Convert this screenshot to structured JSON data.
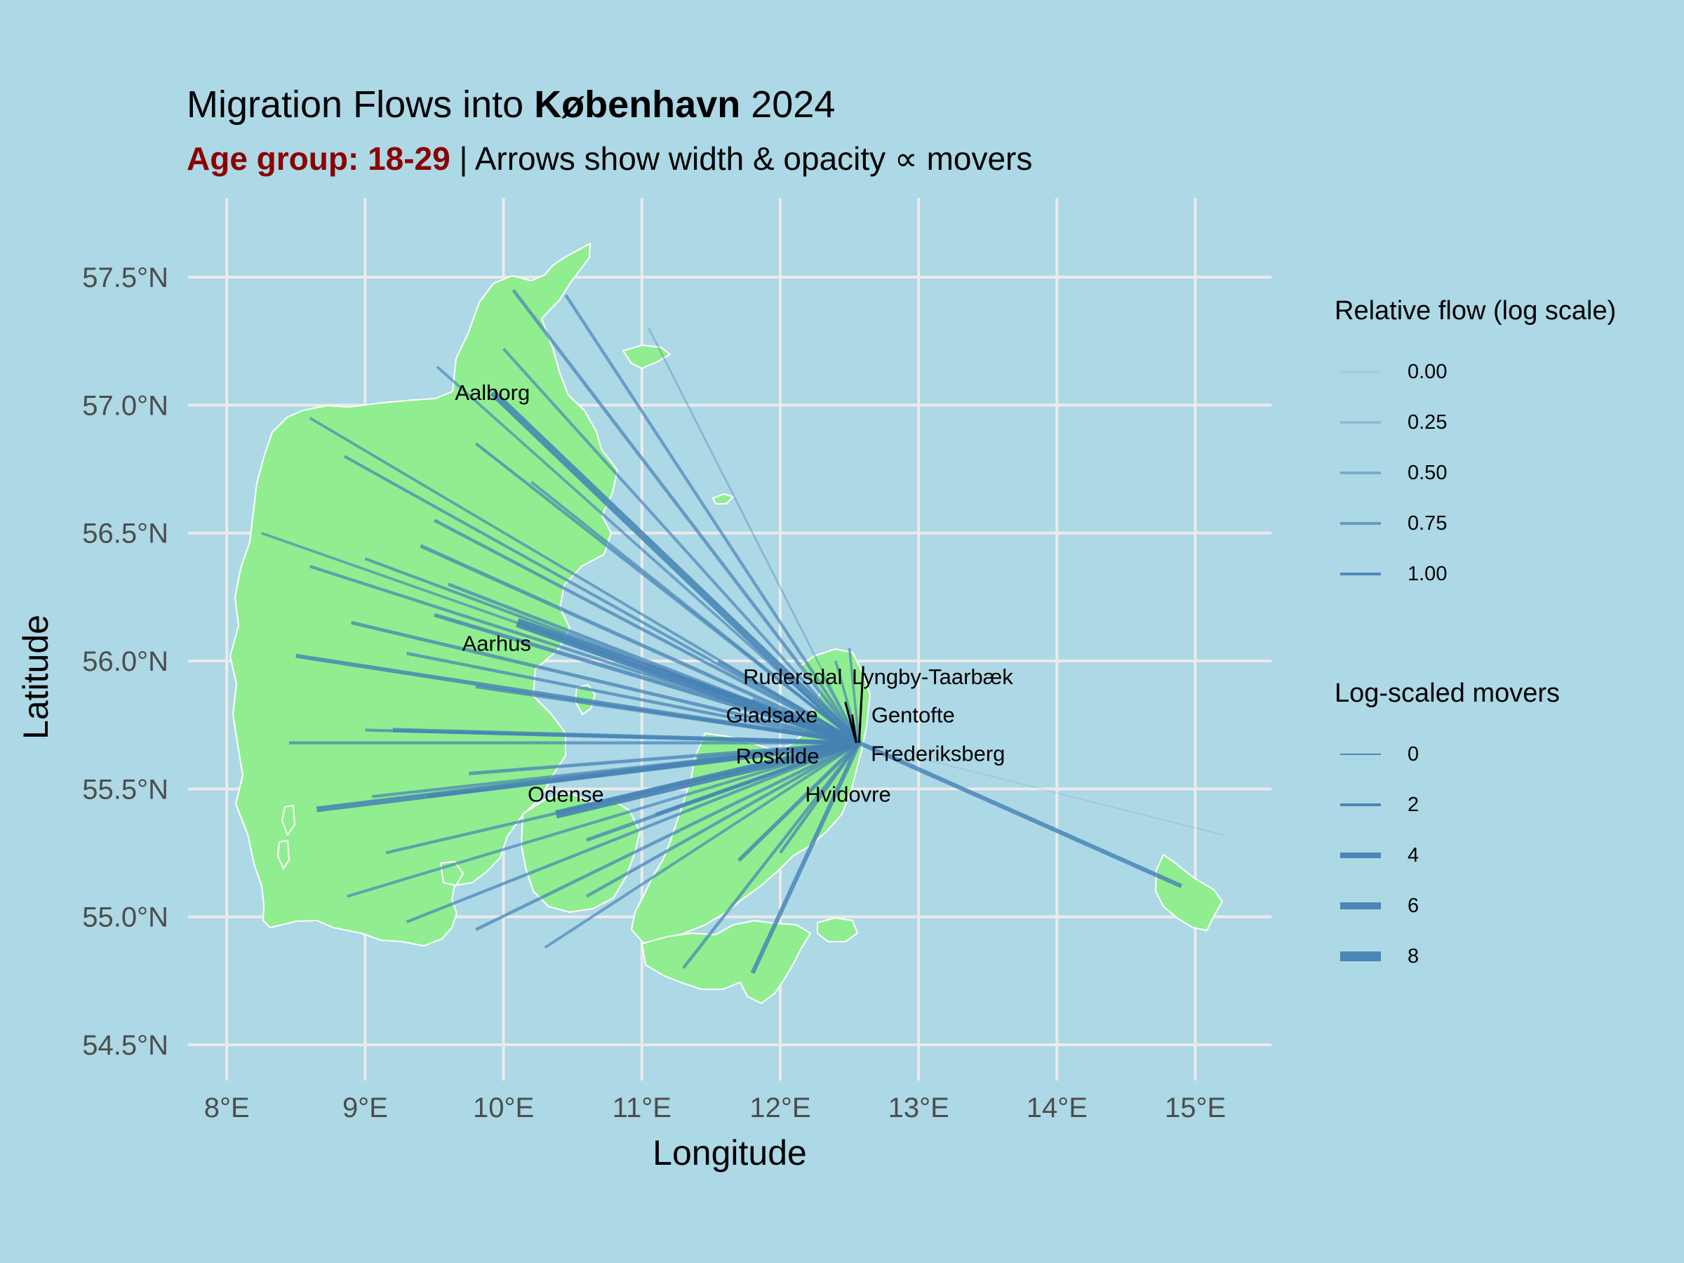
{
  "title": {
    "prefix": "Migration Flows into ",
    "city": "København",
    "year": " 2024"
  },
  "subtitle": {
    "age_label": "Age group: 18-29",
    "rest": " | Arrows show width & opacity ∝ movers"
  },
  "axes": {
    "xlabel": "Longitude",
    "ylabel": "Latitude",
    "x_ticks": [
      "8°E",
      "9°E",
      "10°E",
      "11°E",
      "12°E",
      "13°E",
      "14°E",
      "15°E"
    ],
    "y_ticks": [
      "54.5°N",
      "55.0°N",
      "55.5°N",
      "56.0°N",
      "56.5°N",
      "57.0°N",
      "57.5°N"
    ],
    "x_range": [
      7.72,
      15.55
    ],
    "y_range": [
      54.36,
      57.81
    ]
  },
  "colors": {
    "sea": "#ADD8E6",
    "land": "#90EE90",
    "flow": "#4682B4",
    "grid": "#EBEBEB",
    "highlight": "#8B0000"
  },
  "destination": {
    "name": "København",
    "lon": 12.57,
    "lat": 55.68
  },
  "labels": [
    {
      "text": "Aalborg",
      "lon": 9.92,
      "lat": 57.05,
      "lon_line": null,
      "lat_line": null
    },
    {
      "text": "Aarhus",
      "lon": 9.95,
      "lat": 56.07,
      "lon_line": null,
      "lat_line": null
    },
    {
      "text": "Odense",
      "lon": 10.45,
      "lat": 55.48,
      "lon_line": null,
      "lat_line": null
    },
    {
      "text": "Roskilde",
      "lon": 11.98,
      "lat": 55.63,
      "lon_line": null,
      "lat_line": null
    },
    {
      "text": "Rudersdal",
      "lon": 12.09,
      "lat": 55.94,
      "lon_line": 12.47,
      "lat_line": 55.84
    },
    {
      "text": "Lyngby-Taarbæk",
      "lon": 13.1,
      "lat": 55.94,
      "lon_line": 12.6,
      "lat_line": 55.98
    },
    {
      "text": "Gladsaxe",
      "lon": 11.94,
      "lat": 55.79,
      "lon_line": null,
      "lat_line": null
    },
    {
      "text": "Gentofte",
      "lon": 12.96,
      "lat": 55.79,
      "lon_line": 12.52,
      "lat_line": 55.79
    },
    {
      "text": "Frederiksberg",
      "lon": 13.14,
      "lat": 55.64,
      "lon_line": null,
      "lat_line": null
    },
    {
      "text": "Hvidovre",
      "lon": 12.49,
      "lat": 55.48,
      "lon_line": null,
      "lat_line": null
    }
  ],
  "flows": [
    {
      "lon": 9.92,
      "lat": 57.05,
      "movers": 6.0,
      "relative": 0.95
    },
    {
      "lon": 10.07,
      "lat": 57.45,
      "movers": 2.3,
      "relative": 0.75
    },
    {
      "lon": 10.45,
      "lat": 57.43,
      "movers": 2.0,
      "relative": 0.72
    },
    {
      "lon": 10.0,
      "lat": 57.22,
      "movers": 1.8,
      "relative": 0.7
    },
    {
      "lon": 9.52,
      "lat": 57.15,
      "movers": 1.6,
      "relative": 0.68
    },
    {
      "lon": 11.05,
      "lat": 57.3,
      "movers": 0.8,
      "relative": 0.35
    },
    {
      "lon": 8.6,
      "lat": 56.95,
      "movers": 1.6,
      "relative": 0.72
    },
    {
      "lon": 8.85,
      "lat": 56.8,
      "movers": 1.8,
      "relative": 0.74
    },
    {
      "lon": 9.8,
      "lat": 56.85,
      "movers": 1.9,
      "relative": 0.74
    },
    {
      "lon": 10.2,
      "lat": 56.7,
      "movers": 1.7,
      "relative": 0.72
    },
    {
      "lon": 9.5,
      "lat": 56.55,
      "movers": 2.1,
      "relative": 0.78
    },
    {
      "lon": 8.25,
      "lat": 56.5,
      "movers": 1.5,
      "relative": 0.68
    },
    {
      "lon": 9.0,
      "lat": 56.4,
      "movers": 1.8,
      "relative": 0.74
    },
    {
      "lon": 8.6,
      "lat": 56.37,
      "movers": 2.0,
      "relative": 0.75
    },
    {
      "lon": 9.4,
      "lat": 56.45,
      "movers": 2.6,
      "relative": 0.8
    },
    {
      "lon": 9.6,
      "lat": 56.3,
      "movers": 2.2,
      "relative": 0.78
    },
    {
      "lon": 10.1,
      "lat": 56.15,
      "movers": 8.0,
      "relative": 1.0
    },
    {
      "lon": 9.5,
      "lat": 56.18,
      "movers": 2.8,
      "relative": 0.85
    },
    {
      "lon": 8.9,
      "lat": 56.15,
      "movers": 2.4,
      "relative": 0.8
    },
    {
      "lon": 9.3,
      "lat": 56.03,
      "movers": 2.0,
      "relative": 0.78
    },
    {
      "lon": 8.5,
      "lat": 56.02,
      "movers": 3.0,
      "relative": 0.88
    },
    {
      "lon": 9.8,
      "lat": 55.9,
      "movers": 2.4,
      "relative": 0.82
    },
    {
      "lon": 9.0,
      "lat": 55.73,
      "movers": 1.9,
      "relative": 0.76
    },
    {
      "lon": 8.45,
      "lat": 55.68,
      "movers": 2.0,
      "relative": 0.75
    },
    {
      "lon": 9.2,
      "lat": 55.73,
      "movers": 3.2,
      "relative": 0.9
    },
    {
      "lon": 9.75,
      "lat": 55.56,
      "movers": 2.3,
      "relative": 0.8
    },
    {
      "lon": 9.05,
      "lat": 55.47,
      "movers": 2.0,
      "relative": 0.75
    },
    {
      "lon": 8.65,
      "lat": 55.42,
      "movers": 4.5,
      "relative": 0.95
    },
    {
      "lon": 9.45,
      "lat": 55.47,
      "movers": 2.5,
      "relative": 0.82
    },
    {
      "lon": 10.38,
      "lat": 55.4,
      "movers": 7.0,
      "relative": 1.0
    },
    {
      "lon": 9.15,
      "lat": 55.25,
      "movers": 1.9,
      "relative": 0.75
    },
    {
      "lon": 8.87,
      "lat": 55.08,
      "movers": 1.8,
      "relative": 0.72
    },
    {
      "lon": 9.3,
      "lat": 54.98,
      "movers": 1.9,
      "relative": 0.74
    },
    {
      "lon": 9.8,
      "lat": 54.95,
      "movers": 2.1,
      "relative": 0.76
    },
    {
      "lon": 10.3,
      "lat": 54.88,
      "movers": 1.7,
      "relative": 0.72
    },
    {
      "lon": 10.6,
      "lat": 55.08,
      "movers": 2.0,
      "relative": 0.75
    },
    {
      "lon": 10.6,
      "lat": 55.3,
      "movers": 2.4,
      "relative": 0.8
    },
    {
      "lon": 11.1,
      "lat": 55.4,
      "movers": 2.5,
      "relative": 0.82
    },
    {
      "lon": 11.8,
      "lat": 54.78,
      "movers": 3.2,
      "relative": 0.88
    },
    {
      "lon": 11.3,
      "lat": 54.8,
      "movers": 2.0,
      "relative": 0.76
    },
    {
      "lon": 11.7,
      "lat": 55.22,
      "movers": 2.8,
      "relative": 0.85
    },
    {
      "lon": 12.0,
      "lat": 55.25,
      "movers": 2.0,
      "relative": 0.78
    },
    {
      "lon": 11.2,
      "lat": 55.95,
      "movers": 2.2,
      "relative": 0.8
    },
    {
      "lon": 11.55,
      "lat": 56.0,
      "movers": 1.8,
      "relative": 0.75
    },
    {
      "lon": 11.8,
      "lat": 55.85,
      "movers": 2.0,
      "relative": 0.78
    },
    {
      "lon": 11.4,
      "lat": 55.62,
      "movers": 2.2,
      "relative": 0.8
    },
    {
      "lon": 12.4,
      "lat": 56.0,
      "movers": 1.5,
      "relative": 0.72
    },
    {
      "lon": 12.3,
      "lat": 55.95,
      "movers": 1.6,
      "relative": 0.72
    },
    {
      "lon": 12.5,
      "lat": 56.05,
      "movers": 1.4,
      "relative": 0.7
    },
    {
      "lon": 14.9,
      "lat": 55.12,
      "movers": 3.2,
      "relative": 0.9
    },
    {
      "lon": 15.2,
      "lat": 55.32,
      "movers": 0.1,
      "relative": 0.05
    }
  ],
  "legend_flow": {
    "title": "Relative flow (log scale)",
    "items": [
      {
        "label": "0.00",
        "value": 0.0
      },
      {
        "label": "0.25",
        "value": 0.25
      },
      {
        "label": "0.50",
        "value": 0.5
      },
      {
        "label": "0.75",
        "value": 0.75
      },
      {
        "label": "1.00",
        "value": 1.0
      }
    ]
  },
  "legend_movers": {
    "title": "Log-scaled movers",
    "items": [
      {
        "label": "0",
        "value": 0
      },
      {
        "label": "2",
        "value": 2
      },
      {
        "label": "4",
        "value": 4
      },
      {
        "label": "6",
        "value": 6
      },
      {
        "label": "8",
        "value": 8
      }
    ]
  }
}
